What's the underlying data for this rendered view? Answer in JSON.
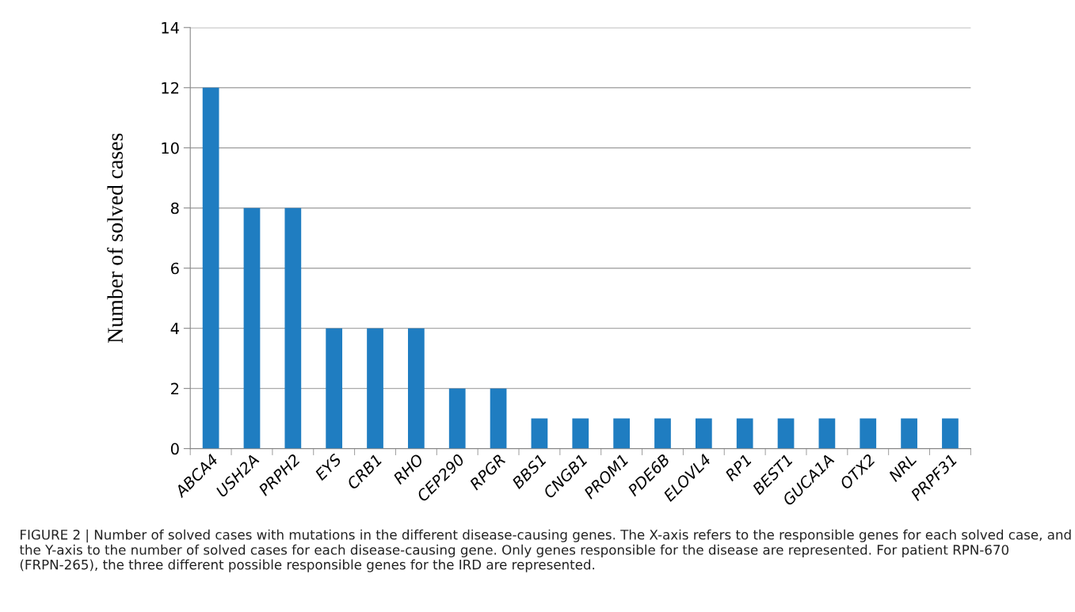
{
  "chart_data": {
    "type": "bar",
    "ylabel": "Number of solved cases",
    "categories": [
      "ABCA4",
      "USH2A",
      "PRPH2",
      "EYS",
      "CRB1",
      "RHO",
      "CEP290",
      "RPGR",
      "BBS1",
      "CNGB1",
      "PROM1",
      "PDE6B",
      "ELOVL4",
      "RP1",
      "BEST1",
      "GUCA1A",
      "OTX2",
      "NRL",
      "PRPF31"
    ],
    "values": [
      12,
      8,
      8,
      4,
      4,
      4,
      2,
      2,
      1,
      1,
      1,
      1,
      1,
      1,
      1,
      1,
      1,
      1,
      1
    ],
    "color": "#1f7dc1",
    "ylim": [
      0,
      14
    ],
    "yticks": [
      0,
      2,
      4,
      6,
      8,
      10,
      12,
      14
    ],
    "grid": "y",
    "annotations": [
      "FIGURE 2 | Number of solved cases with mutations in the different disease-causing genes. The X-axis refers to the responsible genes for each solved case, and the Y-axis to the number of solved cases for each disease-causing gene. Only genes responsible for the disease are represented. For patient RPN-670 (FRPN-265), the three different possible responsible genes for the IRD are represented."
    ]
  }
}
